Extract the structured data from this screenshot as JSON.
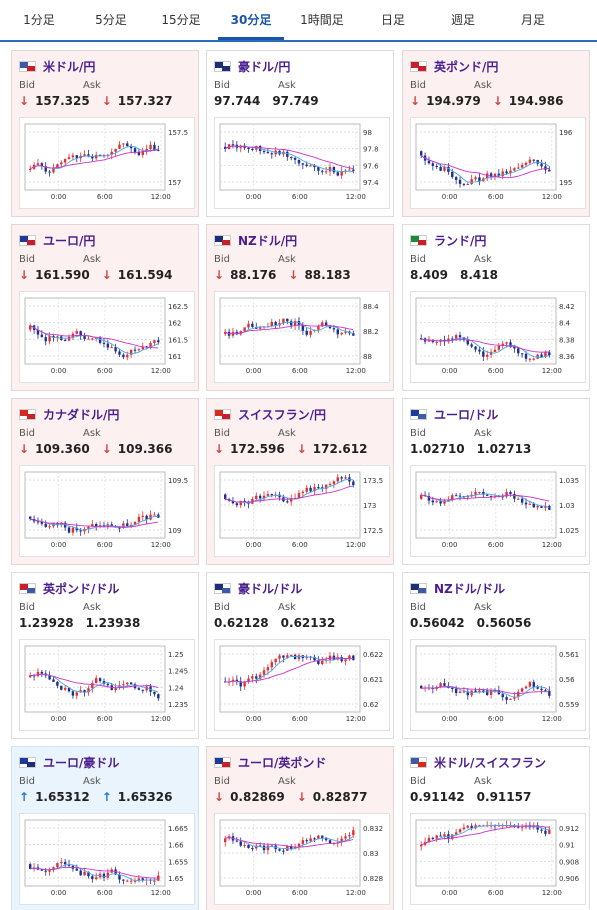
{
  "tabs": [
    {
      "label": "1分足",
      "active": false
    },
    {
      "label": "5分足",
      "active": false
    },
    {
      "label": "15分足",
      "active": false
    },
    {
      "label": "30分足",
      "active": true
    },
    {
      "label": "1時間足",
      "active": false
    },
    {
      "label": "日足",
      "active": false
    },
    {
      "label": "週足",
      "active": false
    },
    {
      "label": "月足",
      "active": false
    }
  ],
  "labels": {
    "bid": "Bid",
    "ask": "Ask"
  },
  "colors": {
    "candle_up": "#e03030",
    "candle_down": "#1c2f8f",
    "ma_short": "#4aa6e8",
    "ma_long": "#cc33cc",
    "down_arrow": "#d44444",
    "up_arrow": "#2a78c8"
  },
  "panels": [
    {
      "name": "米ドル/円",
      "flag": [
        "#3c5aa8",
        "#c8202a"
      ],
      "trend": "down",
      "bid": "157.325",
      "ask": "157.327",
      "ticks": [
        "157.5",
        "157"
      ],
      "xticks": [
        "0:00",
        "6:00",
        "12:00"
      ]
    },
    {
      "name": "豪ドル/円",
      "flag": [
        "#1d2d7a",
        "#1d2d7a"
      ],
      "trend": "none",
      "bid": "97.744",
      "ask": "97.749",
      "ticks": [
        "98",
        "97.8",
        "97.6",
        "97.4"
      ],
      "xticks": [
        "0:00",
        "6:00",
        "12:00"
      ]
    },
    {
      "name": "英ポンド/円",
      "flag": [
        "#c8202a",
        "#c8202a"
      ],
      "trend": "down",
      "bid": "194.979",
      "ask": "194.986",
      "ticks": [
        "196",
        "195"
      ],
      "xticks": [
        "0:00",
        "6:00",
        "12:00"
      ]
    },
    {
      "name": "ユーロ/円",
      "flag": [
        "#1d3a9a",
        "#c8202a"
      ],
      "trend": "down",
      "bid": "161.590",
      "ask": "161.594",
      "ticks": [
        "162.5",
        "162",
        "161.5",
        "161"
      ],
      "xticks": [
        "0:00",
        "6:00",
        "12:00"
      ]
    },
    {
      "name": "NZドル/円",
      "flag": [
        "#1d2d7a",
        "#c8202a"
      ],
      "trend": "down",
      "bid": "88.176",
      "ask": "88.183",
      "ticks": [
        "88.4",
        "88.2",
        "88"
      ],
      "xticks": [
        "0:00",
        "6:00",
        "12:00"
      ]
    },
    {
      "name": "ランド/円",
      "flag": [
        "#1f8a3a",
        "#c8202a"
      ],
      "trend": "none",
      "bid": "8.409",
      "ask": "8.418",
      "ticks": [
        "8.42",
        "8.4",
        "8.38",
        "8.36"
      ],
      "xticks": [
        "0:00",
        "6:00",
        "12:00"
      ]
    },
    {
      "name": "カナダドル/円",
      "flag": [
        "#d52b1e",
        "#c8202a"
      ],
      "trend": "down",
      "bid": "109.360",
      "ask": "109.366",
      "ticks": [
        "109.5",
        "109"
      ],
      "xticks": [
        "0:00",
        "6:00",
        "12:00"
      ]
    },
    {
      "name": "スイスフラン/円",
      "flag": [
        "#d52b1e",
        "#c8202a"
      ],
      "trend": "down",
      "bid": "172.596",
      "ask": "172.612",
      "ticks": [
        "173.5",
        "173",
        "172.5"
      ],
      "xticks": [
        "0:00",
        "6:00",
        "12:00"
      ]
    },
    {
      "name": "ユーロ/ドル",
      "flag": [
        "#1d3a9a",
        "#3c5aa8"
      ],
      "trend": "none",
      "bid": "1.02710",
      "ask": "1.02713",
      "ticks": [
        "1.035",
        "1.03",
        "1.025"
      ],
      "xticks": [
        "0:00",
        "6:00",
        "12:00"
      ]
    },
    {
      "name": "英ポンド/ドル",
      "flag": [
        "#c8202a",
        "#3c5aa8"
      ],
      "trend": "none",
      "bid": "1.23928",
      "ask": "1.23938",
      "ticks": [
        "1.25",
        "1.245",
        "1.24",
        "1.235"
      ],
      "xticks": [
        "0:00",
        "6:00",
        "12:00"
      ]
    },
    {
      "name": "豪ドル/ドル",
      "flag": [
        "#1d2d7a",
        "#3c5aa8"
      ],
      "trend": "none",
      "bid": "0.62128",
      "ask": "0.62132",
      "ticks": [
        "0.622",
        "0.621",
        "0.62"
      ],
      "xticks": [
        "0:00",
        "6:00",
        "12:00"
      ]
    },
    {
      "name": "NZドル/ドル",
      "flag": [
        "#1d2d7a",
        "#3c5aa8"
      ],
      "trend": "none",
      "bid": "0.56042",
      "ask": "0.56056",
      "ticks": [
        "0.561",
        "0.56",
        "0.559"
      ],
      "xticks": [
        "0:00",
        "6:00",
        "12:00"
      ]
    },
    {
      "name": "ユーロ/豪ドル",
      "flag": [
        "#1d3a9a",
        "#1d2d7a"
      ],
      "trend": "up",
      "bid": "1.65312",
      "ask": "1.65326",
      "ticks": [
        "1.665",
        "1.66",
        "1.655",
        "1.65"
      ],
      "xticks": [
        "0:00",
        "6:00",
        "12:00"
      ]
    },
    {
      "name": "ユーロ/英ポンド",
      "flag": [
        "#1d3a9a",
        "#c8202a"
      ],
      "trend": "down",
      "bid": "0.82869",
      "ask": "0.82877",
      "ticks": [
        "0.832",
        "0.83",
        "0.828"
      ],
      "xticks": [
        "0:00",
        "6:00",
        "12:00"
      ]
    },
    {
      "name": "米ドル/スイスフラン",
      "flag": [
        "#3c5aa8",
        "#d52b1e"
      ],
      "trend": "none",
      "bid": "0.91142",
      "ask": "0.91157",
      "ticks": [
        "0.912",
        "0.91",
        "0.908",
        "0.906"
      ],
      "xticks": [
        "0:00",
        "6:00",
        "12:00"
      ]
    }
  ]
}
